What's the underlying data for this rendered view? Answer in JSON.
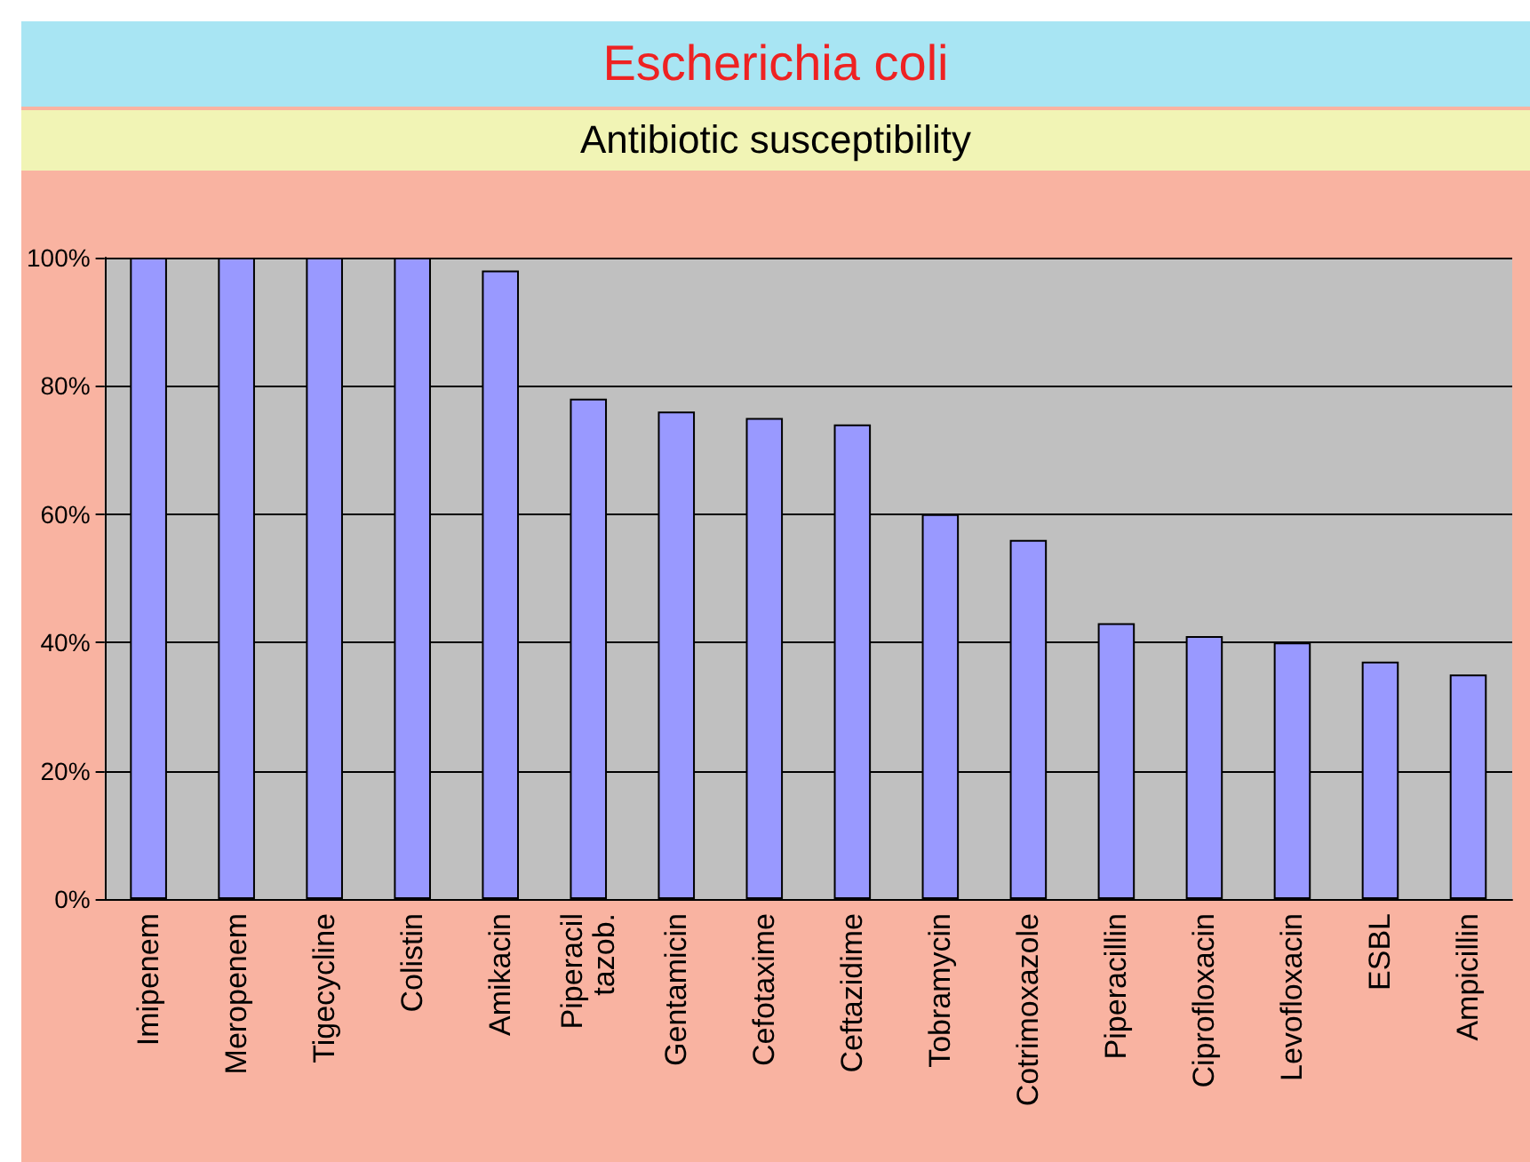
{
  "chart_data": {
    "type": "bar",
    "title": "Escherichia coli",
    "subtitle": "Antibiotic susceptibility",
    "categories": [
      "Imipenem",
      "Meropenem",
      "Tigecycline",
      "Colistin",
      "Amikacin",
      "Piperacil\ntazob.",
      "Gentamicin",
      "Cefotaxime",
      "Ceftazidime",
      "Tobramycin",
      "Cotrimoxazole",
      "Piperacillin",
      "Ciprofloxacin",
      "Levofloxacin",
      "ESBL",
      "Ampicillin"
    ],
    "values": [
      100,
      100,
      100,
      100,
      98,
      78,
      76,
      75,
      74,
      60,
      56,
      43,
      41,
      40,
      37,
      35
    ],
    "color": "#9999ff",
    "ylim": [
      0,
      100
    ],
    "yticks": [
      {
        "value": 0,
        "label": "0%"
      },
      {
        "value": 20,
        "label": "20%"
      },
      {
        "value": 40,
        "label": "40%"
      },
      {
        "value": 60,
        "label": "60%"
      },
      {
        "value": 80,
        "label": "80%"
      },
      {
        "value": 100,
        "label": "100%"
      }
    ],
    "grid": "y"
  }
}
